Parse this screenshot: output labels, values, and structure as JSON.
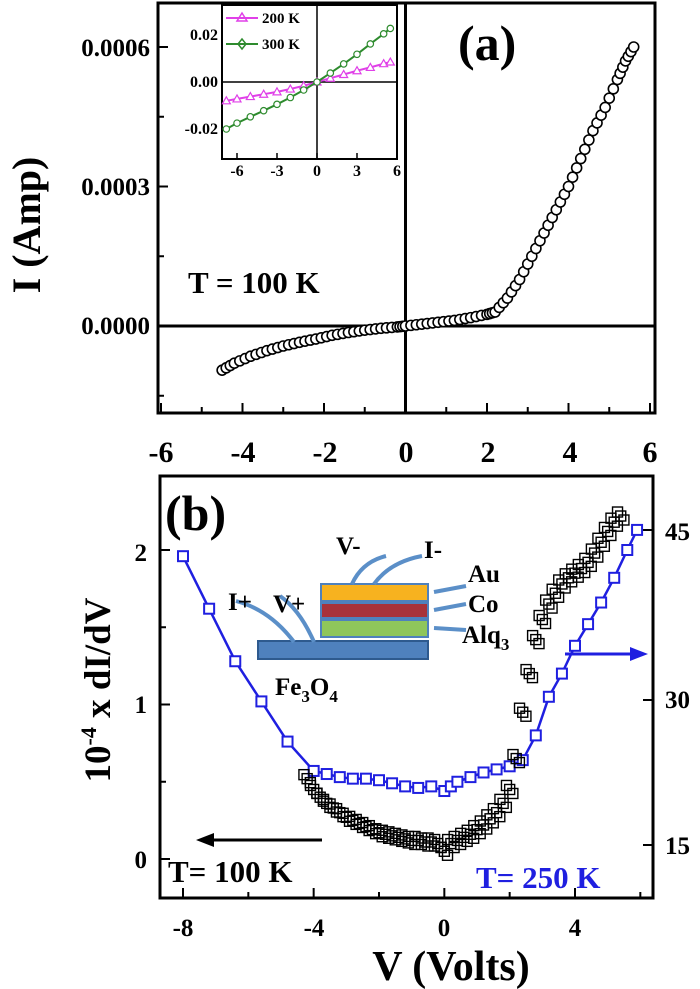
{
  "panel_a": {
    "label": "(a)",
    "ylabel": "I (Amp)",
    "temperature": "T = 100 K",
    "xticks": [
      "-6",
      "-4",
      "-2",
      "0",
      "2",
      "4",
      "6"
    ],
    "yticks": [
      "0.0006",
      "0.0003",
      "0.0000"
    ],
    "inset": {
      "xticks": [
        "-6",
        "-3",
        "0",
        "3",
        "6"
      ],
      "yticks": [
        "0.02",
        "0.00",
        "-0.02"
      ],
      "legend": [
        "200 K",
        "300 K"
      ]
    }
  },
  "panel_b": {
    "label": "(b)",
    "ylabel_left_main": "10",
    "ylabel_left_sup": "-4",
    "ylabel_left_rest": " x dI/dV",
    "xlabel": "V (Volts)",
    "xticks": [
      "-8",
      "-4",
      "0",
      "4"
    ],
    "yticks_left": [
      "2",
      "1",
      "0"
    ],
    "yticks_right": [
      "45",
      "30",
      "15"
    ],
    "temp_left": "T= 100 K",
    "temp_right": "T= 250 K",
    "device": {
      "labels": {
        "i_plus": "I+",
        "v_plus": "V+",
        "v_minus": "V-",
        "i_minus": "I-",
        "au": "Au",
        "co": "Co",
        "alq_main": "Alq",
        "alq_sub": "3",
        "fe_main": "Fe",
        "fe_sub1": "3",
        "fe_mid": "O",
        "fe_sub2": "4"
      },
      "colors": {
        "au": "#f7b21f",
        "co": "#a8323a",
        "alq": "#8fc65b",
        "substrate": "#4f81bd",
        "arrow": "#5b8fc8"
      }
    }
  },
  "colors": {
    "black_series": "#000000",
    "blue_series": "#1f1fe0",
    "pink_series": "#e040e8",
    "green_series": "#2e8b2e"
  },
  "chart_data": [
    {
      "type": "scatter",
      "panel": "a",
      "xlim": [
        -6,
        6
      ],
      "ylim": [
        -0.00015,
        0.00075
      ],
      "ylabel": "I (Amp)",
      "series": [
        {
          "x": [
            -4.5,
            -4.2,
            -3.8,
            -3.4,
            -3.0,
            -2.6,
            -2.2,
            -1.8,
            -1.4,
            -1.0,
            -0.6,
            -0.2,
            0.0,
            0.4,
            0.8,
            1.2,
            1.6,
            2.0,
            2.2,
            2.5,
            2.8,
            3.1,
            3.4,
            3.7,
            4.0,
            4.3,
            4.6,
            4.9,
            5.2,
            5.4,
            5.6
          ],
          "y": [
            -9.5e-05,
            -8e-05,
            -6.5e-05,
            -5.3e-05,
            -4.3e-05,
            -3.5e-05,
            -2.8e-05,
            -2e-05,
            -1.4e-05,
            -9e-06,
            -5e-06,
            -2e-06,
            0.0,
            4e-06,
            8e-06,
            1.2e-05,
            1.8e-05,
            2.5e-05,
            3e-05,
            6e-05,
            0.0001,
            0.00015,
            0.0002,
            0.00025,
            0.0003,
            0.00036,
            0.00042,
            0.00047,
            0.00053,
            0.00057,
            0.0006
          ]
        }
      ]
    },
    {
      "type": "line",
      "panel": "a-inset",
      "xlim": [
        -7,
        6
      ],
      "ylim": [
        -0.03,
        0.03
      ],
      "series": [
        {
          "name": "200 K",
          "x": [
            -6.8,
            -6,
            -5,
            -4,
            -3,
            -2,
            -1,
            0,
            1,
            2,
            3,
            4,
            5,
            5.5
          ],
          "y": [
            -0.008,
            -0.0072,
            -0.0062,
            -0.0052,
            -0.0042,
            -0.003,
            -0.0016,
            0.0,
            0.0016,
            0.0032,
            0.0048,
            0.0062,
            0.0078,
            0.0085
          ]
        },
        {
          "name": "300 K",
          "x": [
            -6.8,
            -6,
            -5,
            -4,
            -3,
            -2,
            -1,
            0,
            1,
            2,
            3,
            4,
            5,
            5.5
          ],
          "y": [
            -0.02,
            -0.0175,
            -0.0148,
            -0.0122,
            -0.0095,
            -0.0066,
            -0.0034,
            0.0,
            0.0038,
            0.0077,
            0.0118,
            0.0162,
            0.0205,
            0.0228
          ]
        }
      ]
    },
    {
      "type": "scatter",
      "panel": "b",
      "xlim": [
        -8.6,
        6.4
      ],
      "ylim": [
        -0.18,
        2.38
      ],
      "xlabel": "V (Volts)",
      "ylabel": "10^-4 x dI/dV",
      "series": [
        {
          "x": [
            -4.2,
            -4.0,
            -3.8,
            -3.6,
            -3.4,
            -3.2,
            -3.0,
            -2.8,
            -2.6,
            -2.4,
            -2.2,
            -2.0,
            -1.8,
            -1.6,
            -1.4,
            -1.2,
            -1.0,
            -0.8,
            -0.6,
            -0.4,
            -0.2,
            0.0,
            0.2,
            0.4,
            0.6,
            0.8,
            1.0,
            1.2,
            1.4,
            1.6,
            1.8,
            2.0,
            2.2,
            2.4,
            2.6,
            2.8,
            3.0,
            3.2,
            3.4,
            3.6,
            3.8,
            4.0,
            4.2,
            4.4,
            4.6,
            4.8,
            5.0,
            5.2,
            5.4
          ],
          "y": [
            0.52,
            0.45,
            0.4,
            0.36,
            0.33,
            0.3,
            0.27,
            0.25,
            0.23,
            0.21,
            0.19,
            0.17,
            0.16,
            0.15,
            0.14,
            0.13,
            0.12,
            0.12,
            0.11,
            0.11,
            0.1,
            0.05,
            0.1,
            0.12,
            0.14,
            0.16,
            0.19,
            0.22,
            0.26,
            0.3,
            0.36,
            0.45,
            0.65,
            0.95,
            1.2,
            1.42,
            1.55,
            1.65,
            1.72,
            1.78,
            1.82,
            1.85,
            1.88,
            1.92,
            1.98,
            2.05,
            2.12,
            2.18,
            2.22
          ]
        },
        {
          "x": [
            -8,
            -7.2,
            -6.4,
            -5.6,
            -4.8,
            -4,
            -3.6,
            -3.2,
            -2.8,
            -2.4,
            -2.0,
            -1.6,
            -1.2,
            -0.8,
            -0.4,
            0.0,
            0.2,
            0.4,
            0.8,
            1.2,
            1.6,
            2.0,
            2.4,
            2.8,
            3.2,
            3.6,
            4.0,
            4.4,
            4.8,
            5.2,
            5.6,
            5.9
          ],
          "y": [
            1.96,
            1.62,
            1.28,
            1.02,
            0.76,
            0.57,
            0.55,
            0.53,
            0.52,
            0.52,
            0.51,
            0.49,
            0.47,
            0.46,
            0.47,
            0.44,
            0.47,
            0.5,
            0.53,
            0.56,
            0.58,
            0.6,
            0.64,
            0.8,
            1.05,
            1.2,
            1.38,
            1.52,
            1.66,
            1.82,
            2.0,
            2.13
          ]
        }
      ]
    }
  ]
}
